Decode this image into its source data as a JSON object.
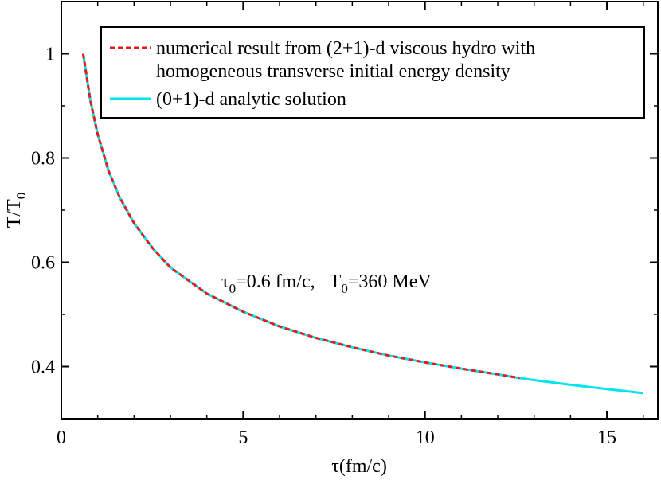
{
  "chart_data": {
    "type": "line",
    "xlabel": {
      "main": "τ",
      "rest": "(fm/c)"
    },
    "ylabel": {
      "main": "T/T",
      "sub": "0"
    },
    "xlim": [
      0,
      16.4
    ],
    "ylim": [
      0.3,
      1.1
    ],
    "x_ticks": [
      0,
      5,
      10,
      15
    ],
    "y_ticks": [
      0.4,
      0.6,
      0.8,
      1
    ],
    "x_tick_labels": [
      "0",
      "5",
      "10",
      "15"
    ],
    "y_tick_labels": [
      "0.4",
      "0.6",
      "0.8",
      "1"
    ],
    "series": [
      {
        "name": "numerical result from (2+1)-d viscous hydro with homogeneous transverse initial energy density",
        "legend_line1": "numerical result from (2+1)-d viscous hydro with",
        "legend_line2": "homogeneous transverse initial energy density",
        "color": "#e8191b",
        "style": "dashed",
        "x": [
          0.6,
          0.8,
          1.0,
          1.3,
          1.6,
          2.0,
          2.5,
          3.0,
          4.0,
          5.0,
          6.0,
          7.0,
          8.0,
          9.0,
          10.0,
          11.0,
          12.0,
          12.6
        ],
        "y": [
          1.0,
          0.91,
          0.845,
          0.775,
          0.725,
          0.675,
          0.628,
          0.59,
          0.54,
          0.505,
          0.477,
          0.455,
          0.437,
          0.421,
          0.408,
          0.396,
          0.385,
          0.378
        ]
      },
      {
        "name": "(0+1)-d analytic solution",
        "legend_line1": "(0+1)-d analytic solution",
        "color": "#00e5ee",
        "style": "solid",
        "x": [
          0.6,
          0.8,
          1.0,
          1.3,
          1.6,
          2.0,
          2.5,
          3.0,
          4.0,
          5.0,
          6.0,
          7.0,
          8.0,
          9.0,
          10.0,
          11.0,
          12.0,
          12.6,
          13.0,
          14.0,
          15.0,
          16.0
        ],
        "y": [
          1.0,
          0.91,
          0.845,
          0.775,
          0.725,
          0.675,
          0.628,
          0.59,
          0.54,
          0.505,
          0.477,
          0.455,
          0.437,
          0.421,
          0.408,
          0.396,
          0.385,
          0.378,
          0.374,
          0.365,
          0.357,
          0.349
        ]
      }
    ],
    "annotation": {
      "tau_sym": "τ",
      "tau_sub": "0",
      "tau_val": "=0.6 fm/c,",
      "T_sym": "T",
      "T_sub": "0",
      "T_val": "=360 MeV"
    },
    "legend_position": "top-right",
    "grid": false
  }
}
